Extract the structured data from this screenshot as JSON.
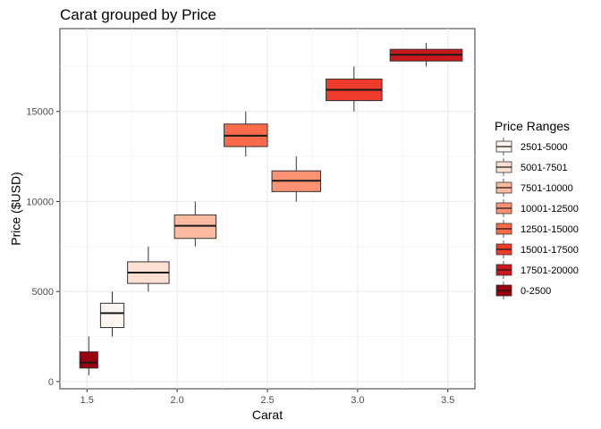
{
  "chart_data": {
    "type": "boxplot",
    "title": "Carat grouped by Price",
    "xlabel": "Carat",
    "ylabel": "Price ($USD)",
    "xlim": [
      1.35,
      3.65
    ],
    "ylim": [
      -400,
      19600
    ],
    "x_ticks": [
      1.5,
      2.0,
      2.5,
      3.0,
      3.5
    ],
    "x_tick_labels": [
      "1.5",
      "2.0",
      "2.5",
      "3.0",
      "3.5"
    ],
    "y_ticks": [
      0,
      5000,
      10000,
      15000
    ],
    "y_tick_labels": [
      "0",
      "5000",
      "10000",
      "15000"
    ],
    "grid": true,
    "legend_title": "Price Ranges",
    "legend_position": "right",
    "series": [
      {
        "name": "2501-5000",
        "color": "#fff5f0",
        "x": 1.64,
        "width": 0.13,
        "min": 2500,
        "q1": 3000,
        "median": 3800,
        "q3": 4350,
        "max": 5000
      },
      {
        "name": "5001-7501",
        "color": "#fee0d2",
        "x": 1.84,
        "width": 0.23,
        "min": 5000,
        "q1": 5450,
        "median": 6050,
        "q3": 6650,
        "max": 7500
      },
      {
        "name": "7501-10000",
        "color": "#fcbba1",
        "x": 2.1,
        "width": 0.23,
        "min": 7500,
        "q1": 7950,
        "median": 8650,
        "q3": 9250,
        "max": 10000
      },
      {
        "name": "10001-12500",
        "color": "#fc9272",
        "x": 2.66,
        "width": 0.27,
        "min": 10000,
        "q1": 10550,
        "median": 11150,
        "q3": 11700,
        "max": 12500
      },
      {
        "name": "12501-15000",
        "color": "#fb6a4a",
        "x": 2.38,
        "width": 0.24,
        "min": 12500,
        "q1": 13050,
        "median": 13650,
        "q3": 14300,
        "max": 15000
      },
      {
        "name": "15001-17500",
        "color": "#ef3b2c",
        "x": 2.98,
        "width": 0.31,
        "min": 15000,
        "q1": 15600,
        "median": 16200,
        "q3": 16800,
        "max": 17500
      },
      {
        "name": "17501-20000",
        "color": "#cb181d",
        "x": 3.38,
        "width": 0.4,
        "min": 17500,
        "q1": 17800,
        "median": 18150,
        "q3": 18450,
        "max": 18800
      },
      {
        "name": "0-2500",
        "color": "#99000d",
        "x": 1.51,
        "width": 0.1,
        "min": 350,
        "q1": 750,
        "median": 1050,
        "q3": 1650,
        "max": 2500
      }
    ]
  }
}
